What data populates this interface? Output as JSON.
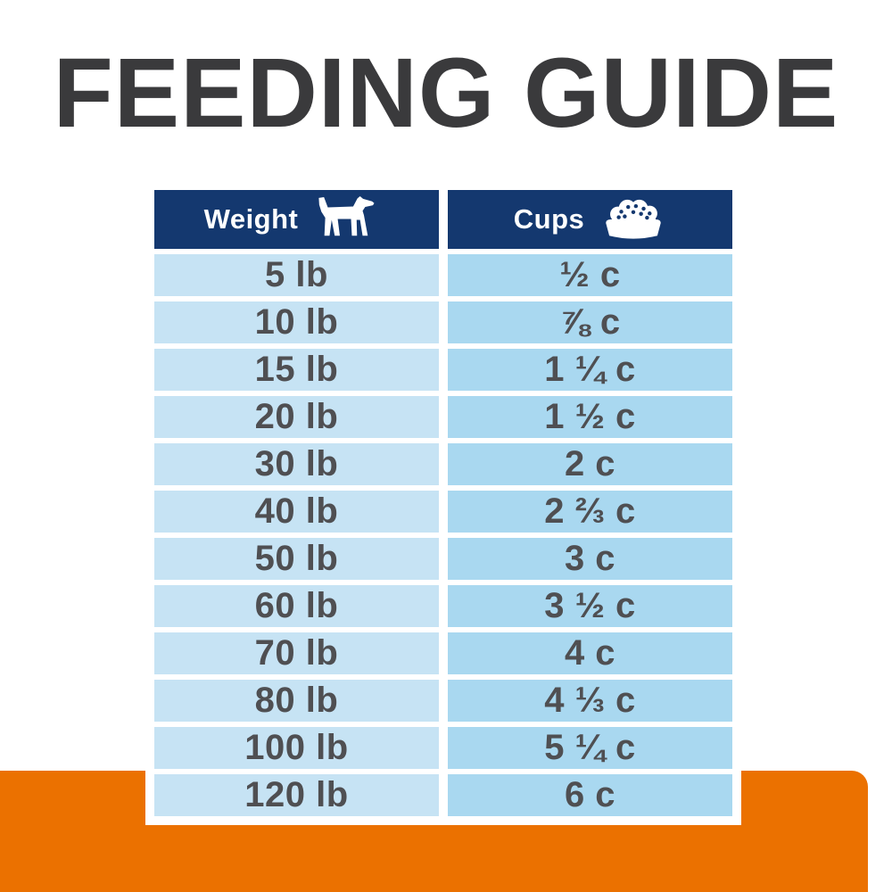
{
  "title": "FEEDING GUIDE",
  "colors": {
    "page_bg": "#ffffff",
    "title_text": "#3a3a3c",
    "header_bg": "#14386f",
    "header_text": "#ffffff",
    "weight_cell_bg": "#c6e3f4",
    "cups_cell_bg": "#a9d8f0",
    "cell_text": "#4f4f52",
    "accent_orange": "#eb7100"
  },
  "table": {
    "headers": [
      {
        "label": "Weight",
        "icon": "dog-icon"
      },
      {
        "label": "Cups",
        "icon": "bowl-icon"
      }
    ],
    "rows": [
      {
        "weight": "5 lb",
        "cups": "½ c"
      },
      {
        "weight": "10 lb",
        "cups": "⅞ c"
      },
      {
        "weight": "15 lb",
        "cups": "1 ¼ c"
      },
      {
        "weight": "20 lb",
        "cups": "1 ½ c"
      },
      {
        "weight": "30 lb",
        "cups": "2 c"
      },
      {
        "weight": "40 lb",
        "cups": "2 ⅔ c"
      },
      {
        "weight": "50 lb",
        "cups": "3 c"
      },
      {
        "weight": "60 lb",
        "cups": "3 ½ c"
      },
      {
        "weight": "70 lb",
        "cups": "4 c"
      },
      {
        "weight": "80 lb",
        "cups": "4 ⅓ c"
      },
      {
        "weight": "100 lb",
        "cups": "5 ¼ c"
      },
      {
        "weight": "120 lb",
        "cups": "6 c"
      }
    ]
  },
  "chart_data": {
    "type": "table",
    "title": "FEEDING GUIDE",
    "columns": [
      "Weight",
      "Cups"
    ],
    "rows": [
      [
        "5 lb",
        "½ c"
      ],
      [
        "10 lb",
        "⅞ c"
      ],
      [
        "15 lb",
        "1 ¼ c"
      ],
      [
        "20 lb",
        "1 ½ c"
      ],
      [
        "30 lb",
        "2 c"
      ],
      [
        "40 lb",
        "2 ⅔ c"
      ],
      [
        "50 lb",
        "3 c"
      ],
      [
        "60 lb",
        "3 ½ c"
      ],
      [
        "70 lb",
        "4 c"
      ],
      [
        "80 lb",
        "4 ⅓ c"
      ],
      [
        "100 lb",
        "5 ¼ c"
      ],
      [
        "120 lb",
        "6 c"
      ]
    ],
    "weights_lb": [
      5,
      10,
      15,
      20,
      30,
      40,
      50,
      60,
      70,
      80,
      100,
      120
    ],
    "cups_numeric": [
      0.5,
      0.875,
      1.25,
      1.5,
      2,
      2.67,
      3,
      3.5,
      4,
      4.33,
      5.25,
      6
    ]
  }
}
